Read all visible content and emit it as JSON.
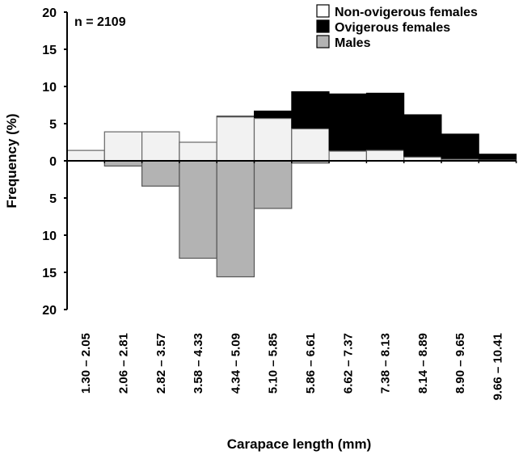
{
  "chart_data": {
    "type": "bar",
    "subtype": "stacked-bidirectional-histogram",
    "annotation": "n = 2109",
    "xlabel": "Carapace length (mm)",
    "ylabel": "Frequency (%)",
    "y_ticks": [
      "20",
      "15",
      "10",
      "5",
      "0",
      "5",
      "10",
      "15",
      "20"
    ],
    "ylim": [
      -20,
      20
    ],
    "grid": false,
    "legend_position": "top-right",
    "categories": [
      "1.30 – 2.05",
      "2.06 – 2.81",
      "2.82 – 3.57",
      "3.58 – 4.33",
      "4.34 – 5.09",
      "5.10 – 5.85",
      "5.86 – 6.61",
      "6.62 – 7.37",
      "7.38 – 8.13",
      "8.14 – 8.89",
      "8.90 – 9.65",
      "9.66 – 10.41"
    ],
    "series": [
      {
        "name": "Non-ovigerous females",
        "color": "#f2f2f2",
        "direction": "up",
        "values": [
          1.4,
          3.9,
          3.9,
          2.5,
          5.9,
          5.7,
          4.3,
          1.3,
          1.4,
          0.5,
          0.2,
          0.1
        ]
      },
      {
        "name": "Ovigerous females",
        "color": "#000000",
        "direction": "up-stacked",
        "values": [
          0,
          0,
          0,
          0,
          0.1,
          1.0,
          5.0,
          7.7,
          7.7,
          5.7,
          3.4,
          0.8
        ]
      },
      {
        "name": "Males",
        "color": "#b3b3b3",
        "direction": "down",
        "values": [
          0,
          0.7,
          3.4,
          13.1,
          15.6,
          6.4,
          0.3,
          0,
          0,
          0,
          0,
          0
        ]
      }
    ]
  }
}
